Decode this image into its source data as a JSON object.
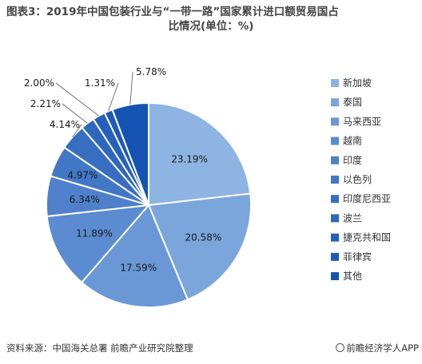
{
  "title": {
    "line1": "图表3：2019年中国包装行业与“一带一路”国家累计进口额贸易国占",
    "line2": "比情况(单位：%)"
  },
  "footer": {
    "source": "资料来源：中国海关总署 前瞻产业研究院整理",
    "brand": "前瞻经济学人APP"
  },
  "chart_data": {
    "type": "pie",
    "title": "图表3：2019年中国包装行业与“一带一路”国家累计进口额贸易国占比情况(单位：%)",
    "categories": [
      "新加坡",
      "泰国",
      "马来西亚",
      "越南",
      "印度",
      "以色列",
      "印度尼西亚",
      "波兰",
      "捷克共和国",
      "菲律宾",
      "其他"
    ],
    "values": [
      23.19,
      20.58,
      17.59,
      11.89,
      6.34,
      4.97,
      4.14,
      2.21,
      2.0,
      1.31,
      5.78
    ],
    "labels": [
      "23.19%",
      "20.58%",
      "17.59%",
      "11.89%",
      "6.34%",
      "4.97%",
      "4.14%",
      "2.21%",
      "2.00%",
      "1.31%",
      "5.78%"
    ],
    "colors": [
      "#8db4e2",
      "#7ba6dc",
      "#6a98d6",
      "#5b8bd0",
      "#4e80cb",
      "#4277c6",
      "#376ec2",
      "#2e67be",
      "#2660bb",
      "#1e5ab7",
      "#1553b3"
    ],
    "legend_position": "right"
  }
}
